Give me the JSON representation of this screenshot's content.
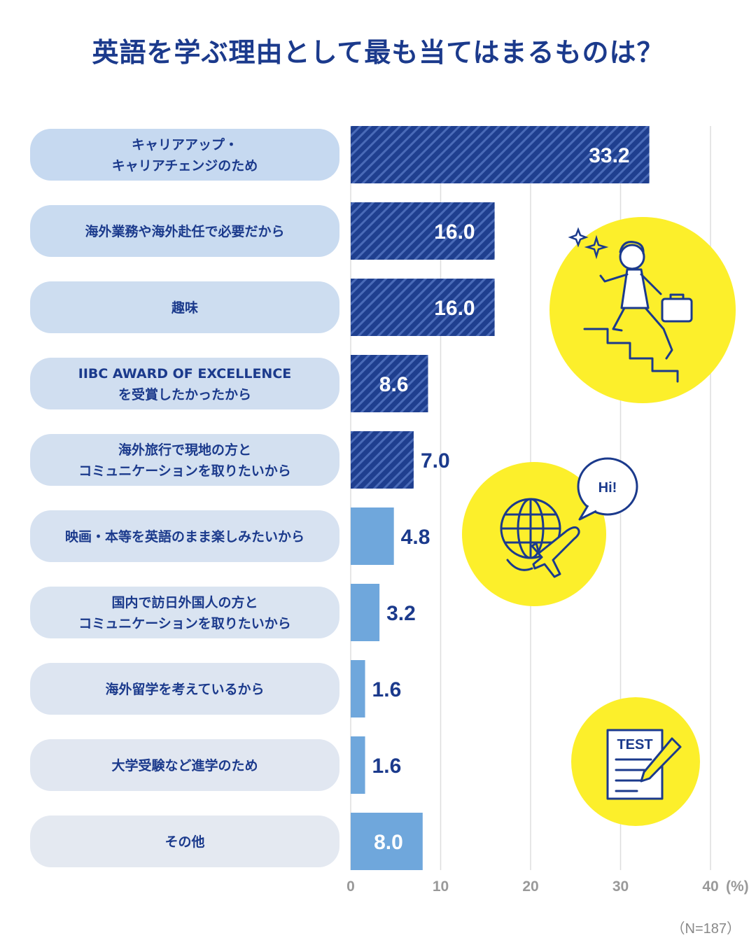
{
  "title": "英語を学ぶ理由として最も当てはまるものは？",
  "note": "（N=187）",
  "colors": {
    "title": "#1b3a8c",
    "dark_bar": "#1f3f8f",
    "dark_bar_stripe": "#4a6bb8",
    "light_bar": "#6fa7dc",
    "label_bg_top": "#c6d9f0",
    "label_bg_bottom": "#e4e9f1",
    "illustration_circle": "#fcef2b",
    "grid": "#dddddd"
  },
  "illustrations": {
    "business_icon": "businessman-climbing-stairs-icon",
    "travel_icon": "globe-airplane-icon",
    "speech_bubble_text": "Hi!",
    "test_icon": "test-paper-pencil-icon",
    "test_label": "TEST"
  },
  "chart_data": {
    "type": "bar",
    "orientation": "horizontal",
    "title": "英語を学ぶ理由として最も当てはまるものは？",
    "unit": "(%)",
    "xlim": [
      0,
      40
    ],
    "xticks": [
      "0",
      "10",
      "20",
      "30",
      "40"
    ],
    "grid": true,
    "categories": [
      [
        "キャリアアップ・",
        "キャリアチェンジのため"
      ],
      [
        "海外業務や海外赴任で必要だから"
      ],
      [
        "趣味"
      ],
      [
        "IIBC AWARD OF EXCELLENCE",
        "を受賞したかったから"
      ],
      [
        "海外旅行で現地の方と",
        "コミュニケーションを取りたいから"
      ],
      [
        "映画・本等を英語のまま楽しみたいから"
      ],
      [
        "国内で訪日外国人の方と",
        "コミュニケーションを取りたいから"
      ],
      [
        "海外留学を考えているから"
      ],
      [
        "大学受験など進学のため"
      ],
      [
        "その他"
      ]
    ],
    "values": [
      33.2,
      16.0,
      16.0,
      8.6,
      7.0,
      4.8,
      3.2,
      1.6,
      1.6,
      8.0
    ],
    "value_labels": [
      "33.2",
      "16.0",
      "16.0",
      "8.6",
      "7.0",
      "4.8",
      "3.2",
      "1.6",
      "1.6",
      "8.0"
    ],
    "bar_style": [
      "striped",
      "striped",
      "striped",
      "striped",
      "striped",
      "solid",
      "solid",
      "solid",
      "solid",
      "solid"
    ]
  }
}
